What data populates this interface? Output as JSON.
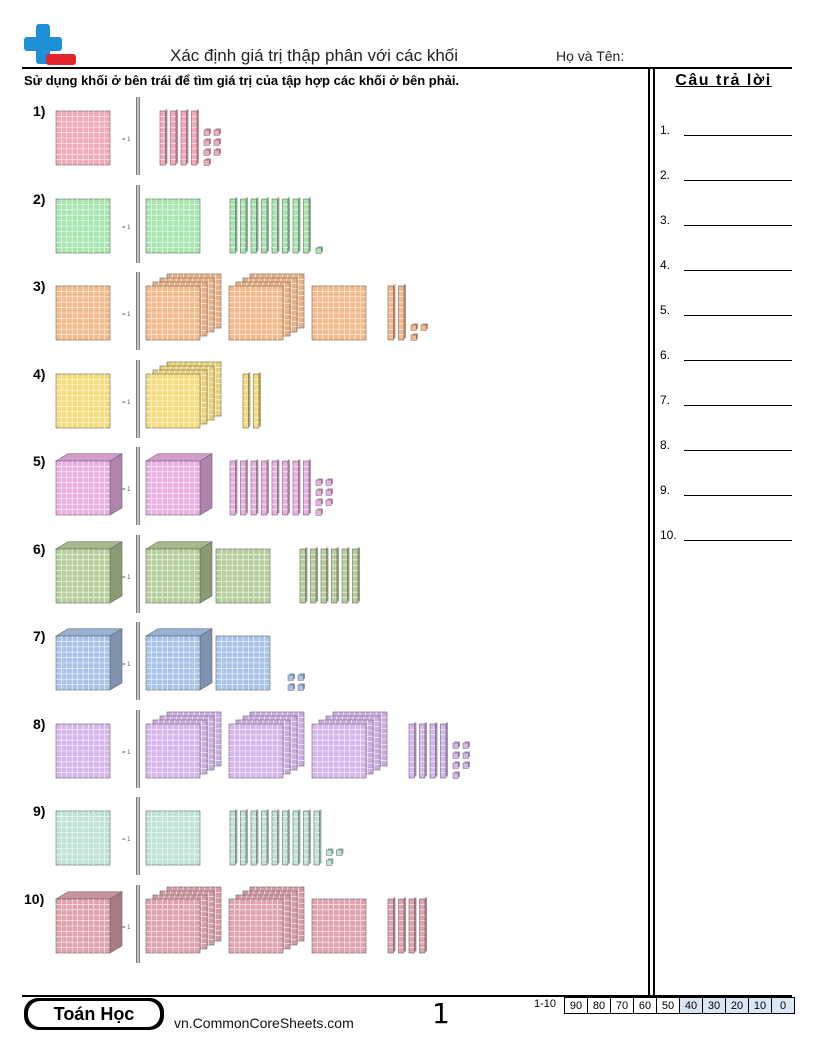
{
  "header": {
    "title": "Xác định giá trị thập phân với các khối",
    "name_label": "Họ và Tên:",
    "instruction": "Sử dụng khối ở bên trái để tìm giá trị của tập hợp các khối ở bên phải."
  },
  "answers": {
    "heading": "Câu trả lời",
    "numbers": [
      "1.",
      "2.",
      "3.",
      "4.",
      "5.",
      "6.",
      "7.",
      "8.",
      "9.",
      "10."
    ]
  },
  "problems": [
    {
      "label": "1)",
      "key_note": "= 1",
      "color": "#f3a9b8",
      "key_type": "flat",
      "groups": {
        "cubes": 0,
        "flats": 0,
        "stacks": [],
        "rods": 4,
        "units": 7
      }
    },
    {
      "label": "2)",
      "key_note": "= 1",
      "color": "#a8e6b0",
      "key_type": "flat",
      "groups": {
        "cubes": 0,
        "flats": 1,
        "stacks": [],
        "rods": 8,
        "units": 1
      }
    },
    {
      "label": "3)",
      "key_note": "= 1",
      "color": "#f6b98a",
      "key_type": "flat",
      "groups": {
        "cubes": 0,
        "flats": 0,
        "stacks": [
          4,
          4,
          1
        ],
        "rods": 2,
        "units": 3
      }
    },
    {
      "label": "4)",
      "key_note": "= 1",
      "color": "#f6dc7a",
      "key_type": "flat",
      "groups": {
        "cubes": 0,
        "flats": 0,
        "stacks": [
          4
        ],
        "rods": 2,
        "units": 0
      }
    },
    {
      "label": "5)",
      "key_note": "= 1",
      "color": "#eab0e3",
      "key_type": "cube",
      "groups": {
        "cubes": 1,
        "flats": 0,
        "stacks": [],
        "rods": 8,
        "units": 7
      }
    },
    {
      "label": "6)",
      "key_note": "= 1",
      "color": "#b5cf9a",
      "key_type": "cube",
      "groups": {
        "cubes": 1,
        "flats": 1,
        "stacks": [],
        "rods": 6,
        "units": 0
      }
    },
    {
      "label": "7)",
      "key_note": "= 1",
      "color": "#a9c3ea",
      "key_type": "cube",
      "groups": {
        "cubes": 1,
        "flats": 1,
        "stacks": [],
        "rods": 0,
        "units": 4
      }
    },
    {
      "label": "8)",
      "key_note": "= 1",
      "color": "#d5b6ee",
      "key_type": "flat",
      "groups": {
        "cubes": 0,
        "flats": 0,
        "stacks": [
          4,
          4,
          4
        ],
        "rods": 4,
        "units": 7
      }
    },
    {
      "label": "9)",
      "key_note": "= 1",
      "color": "#bfe3d6",
      "key_type": "flat",
      "groups": {
        "cubes": 0,
        "flats": 1,
        "stacks": [],
        "rods": 9,
        "units": 3
      }
    },
    {
      "label": "10)",
      "key_note": "= 1",
      "color": "#e0a2ac",
      "key_type": "cube",
      "groups": {
        "cubes": 0,
        "flats": 0,
        "stacks": [
          4,
          4,
          1
        ],
        "rods": 4,
        "units": 0
      }
    }
  ],
  "footer": {
    "brand": "Toán Học",
    "website": "vn.CommonCoreSheets.com",
    "page_number": "1",
    "score_range_label": "1-10",
    "scores": [
      "90",
      "80",
      "70",
      "60",
      "50",
      "40",
      "30",
      "20",
      "10",
      "0"
    ]
  },
  "colors": {
    "logo_blue": "#1f8fd6",
    "logo_red": "#e0262c",
    "score_highlight": "#dbe6f5"
  }
}
